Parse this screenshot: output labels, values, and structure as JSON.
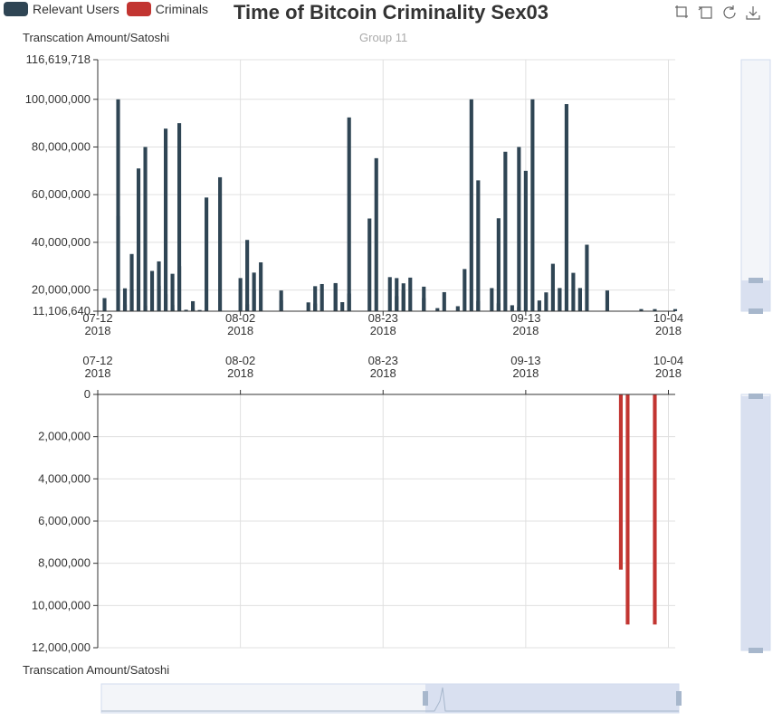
{
  "title": "Time of Bitcoin Criminality Sex03",
  "subtitle": "Group 11",
  "legend": [
    {
      "label": "Relevant Users",
      "color": "#2f4554"
    },
    {
      "label": "Criminals",
      "color": "#c23531"
    }
  ],
  "toolbox": [
    {
      "icon": "zoom-select-icon"
    },
    {
      "icon": "zoom-reset-icon"
    },
    {
      "icon": "restore-icon"
    },
    {
      "icon": "save-image-icon"
    }
  ],
  "chart_data": [
    {
      "type": "bar",
      "name": "top",
      "ylabel": "Transcation Amount/Satoshi",
      "ylim": [
        11106640,
        116619718
      ],
      "yticks": [
        "116,619,718",
        "100,000,000",
        "80,000,000",
        "60,000,000",
        "40,000,000",
        "20,000,000",
        "11,106,640"
      ],
      "xlim": [
        "2018-07-12",
        "2018-10-05"
      ],
      "xticks": [
        {
          "line1": "07-12",
          "line2": "2018"
        },
        {
          "line1": "08-02",
          "line2": "2018"
        },
        {
          "line1": "08-23",
          "line2": "2018"
        },
        {
          "line1": "09-13",
          "line2": "2018"
        },
        {
          "line1": "10-04",
          "line2": "2018"
        }
      ],
      "grid": true,
      "series": [
        {
          "name": "Relevant Users",
          "color": "#2f4554",
          "x": [
            "2018-07-13",
            "2018-07-15",
            "2018-07-15",
            "2018-07-16",
            "2018-07-16",
            "2018-07-17",
            "2018-07-17",
            "2018-07-18",
            "2018-07-19",
            "2018-07-19",
            "2018-07-20",
            "2018-07-21",
            "2018-07-21",
            "2018-07-22",
            "2018-07-22",
            "2018-07-23",
            "2018-07-23",
            "2018-07-23",
            "2018-07-24",
            "2018-07-24",
            "2018-07-25",
            "2018-07-26",
            "2018-07-26",
            "2018-07-27",
            "2018-07-28",
            "2018-07-30",
            "2018-08-02",
            "2018-08-03",
            "2018-08-03",
            "2018-08-04",
            "2018-08-04",
            "2018-08-05",
            "2018-08-08",
            "2018-08-08",
            "2018-08-12",
            "2018-08-13",
            "2018-08-13",
            "2018-08-14",
            "2018-08-16",
            "2018-08-16",
            "2018-08-17",
            "2018-08-18",
            "2018-08-18",
            "2018-08-21",
            "2018-08-22",
            "2018-08-24",
            "2018-08-25",
            "2018-08-25",
            "2018-08-26",
            "2018-08-26",
            "2018-08-27",
            "2018-08-29",
            "2018-08-29",
            "2018-08-31",
            "2018-09-01",
            "2018-09-03",
            "2018-09-04",
            "2018-09-05",
            "2018-09-06",
            "2018-09-06",
            "2018-09-08",
            "2018-09-09",
            "2018-09-09",
            "2018-09-10",
            "2018-09-11",
            "2018-09-12",
            "2018-09-12",
            "2018-09-13",
            "2018-09-14",
            "2018-09-15",
            "2018-09-16",
            "2018-09-17",
            "2018-09-18",
            "2018-09-18",
            "2018-09-19",
            "2018-09-20",
            "2018-09-21",
            "2018-09-21",
            "2018-09-22",
            "2018-09-25",
            "2018-09-30",
            "2018-10-02",
            "2018-10-05"
          ],
          "values": [
            16600000,
            100000000,
            51000000,
            13900000,
            20700000,
            35100000,
            20000000,
            71000000,
            80000000,
            13400000,
            28000000,
            21700000,
            32000000,
            87700000,
            18200000,
            26800000,
            13700000,
            12000000,
            30000000,
            90000000,
            11700000,
            15300000,
            12000000,
            11600000,
            58800000,
            67300000,
            25000000,
            41000000,
            14000000,
            20000000,
            27300000,
            31600000,
            15700000,
            19800000,
            14800000,
            21600000,
            14300000,
            22500000,
            22900000,
            22700000,
            14900000,
            92400000,
            18500000,
            50000000,
            75300000,
            25400000,
            25000000,
            17400000,
            22800000,
            19800000,
            25200000,
            16600000,
            21400000,
            12400000,
            19100000,
            13200000,
            28800000,
            100000000,
            15400000,
            66000000,
            20800000,
            14400000,
            50100000,
            78000000,
            13600000,
            80000000,
            12800000,
            70000000,
            100000000,
            15600000,
            19000000,
            31000000,
            20800000,
            20800000,
            98000000,
            27200000,
            20800000,
            20800000,
            39000000,
            19800000,
            12000000,
            12000000,
            12000000
          ]
        }
      ]
    },
    {
      "type": "bar",
      "name": "bottom",
      "xlabel": "Transcation Amount/Satoshi",
      "ylim": [
        0,
        12000000
      ],
      "inverted": true,
      "yticks": [
        "0",
        "2,000,000",
        "4,000,000",
        "6,000,000",
        "8,000,000",
        "10,000,000",
        "12,000,000"
      ],
      "xlim": [
        "2018-07-12",
        "2018-10-05"
      ],
      "xticks": [
        {
          "line1": "07-12",
          "line2": "2018"
        },
        {
          "line1": "08-02",
          "line2": "2018"
        },
        {
          "line1": "08-23",
          "line2": "2018"
        },
        {
          "line1": "09-13",
          "line2": "2018"
        },
        {
          "line1": "10-04",
          "line2": "2018"
        }
      ],
      "grid": true,
      "series": [
        {
          "name": "Criminals",
          "color": "#c23531",
          "x": [
            "2018-09-27",
            "2018-09-28",
            "2018-10-02"
          ],
          "values": [
            8300000,
            10900000,
            10900000
          ]
        }
      ]
    }
  ]
}
